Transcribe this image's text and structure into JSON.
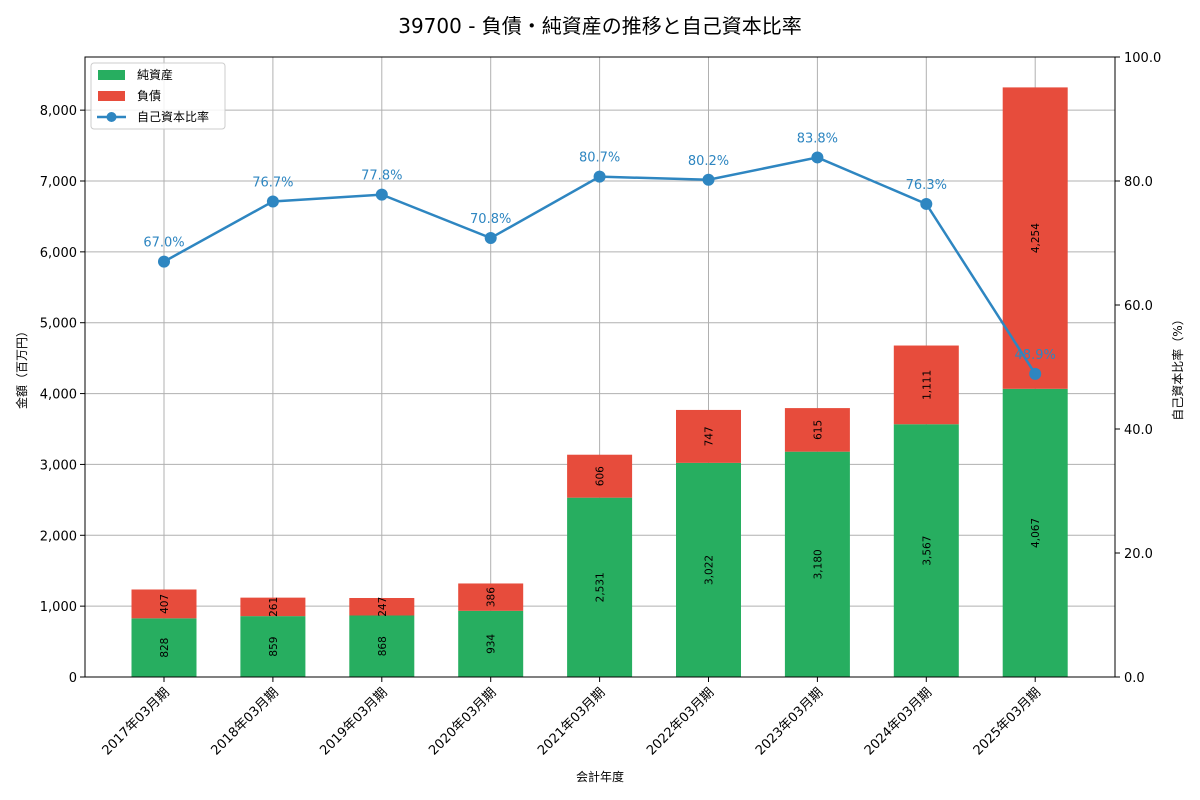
{
  "chart_data": {
    "type": "bar",
    "subtype": "stacked-bar-with-line-secondary-axis",
    "title": "39700 - 負債・純資産の推移と自己資本比率",
    "xlabel": "会計年度",
    "ylabel": "金額（百万円）",
    "ylabel_right": "自己資本比率（%）",
    "categories": [
      "2017年03月期",
      "2018年03月期",
      "2019年03月期",
      "2020年03月期",
      "2021年03月期",
      "2022年03月期",
      "2023年03月期",
      "2024年03月期",
      "2025年03月期"
    ],
    "series": [
      {
        "name": "純資産",
        "type": "bar",
        "axis": "left",
        "color": "#27ae60",
        "values": [
          828,
          859,
          868,
          934,
          2531,
          3022,
          3180,
          3567,
          4067
        ],
        "labels": [
          "828",
          "859",
          "868",
          "934",
          "2,531",
          "3,022",
          "3,180",
          "3,567",
          "4,067"
        ]
      },
      {
        "name": "負債",
        "type": "bar",
        "axis": "left",
        "color": "#e74c3c",
        "values": [
          407,
          261,
          247,
          386,
          606,
          747,
          615,
          1111,
          4254
        ],
        "labels": [
          "407",
          "261",
          "247",
          "386",
          "606",
          "747",
          "615",
          "1,111",
          "4,254"
        ]
      },
      {
        "name": "自己資本比率",
        "type": "line",
        "axis": "right",
        "color": "#2e86c1",
        "values": [
          67.0,
          76.7,
          77.8,
          70.8,
          80.7,
          80.2,
          83.8,
          76.3,
          48.9
        ],
        "labels": [
          "67.0%",
          "76.7%",
          "77.8%",
          "70.8%",
          "80.7%",
          "80.2%",
          "83.8%",
          "76.3%",
          "48.9%"
        ]
      }
    ],
    "ylim": [
      0,
      8750
    ],
    "ylim_right": [
      0,
      100
    ],
    "yticks": [
      0,
      1000,
      2000,
      3000,
      4000,
      5000,
      6000,
      7000,
      8000
    ],
    "ytick_labels": [
      "0",
      "1,000",
      "2,000",
      "3,000",
      "4,000",
      "5,000",
      "6,000",
      "7,000",
      "8,000"
    ],
    "yticks_right": [
      0,
      20,
      40,
      60,
      80,
      100
    ],
    "ytick_labels_right": [
      "0.0",
      "20.0",
      "40.0",
      "60.0",
      "80.0",
      "100.0"
    ],
    "grid": true,
    "legend_position": "upper left",
    "legend": [
      "純資産",
      "負債",
      "自己資本比率"
    ]
  }
}
